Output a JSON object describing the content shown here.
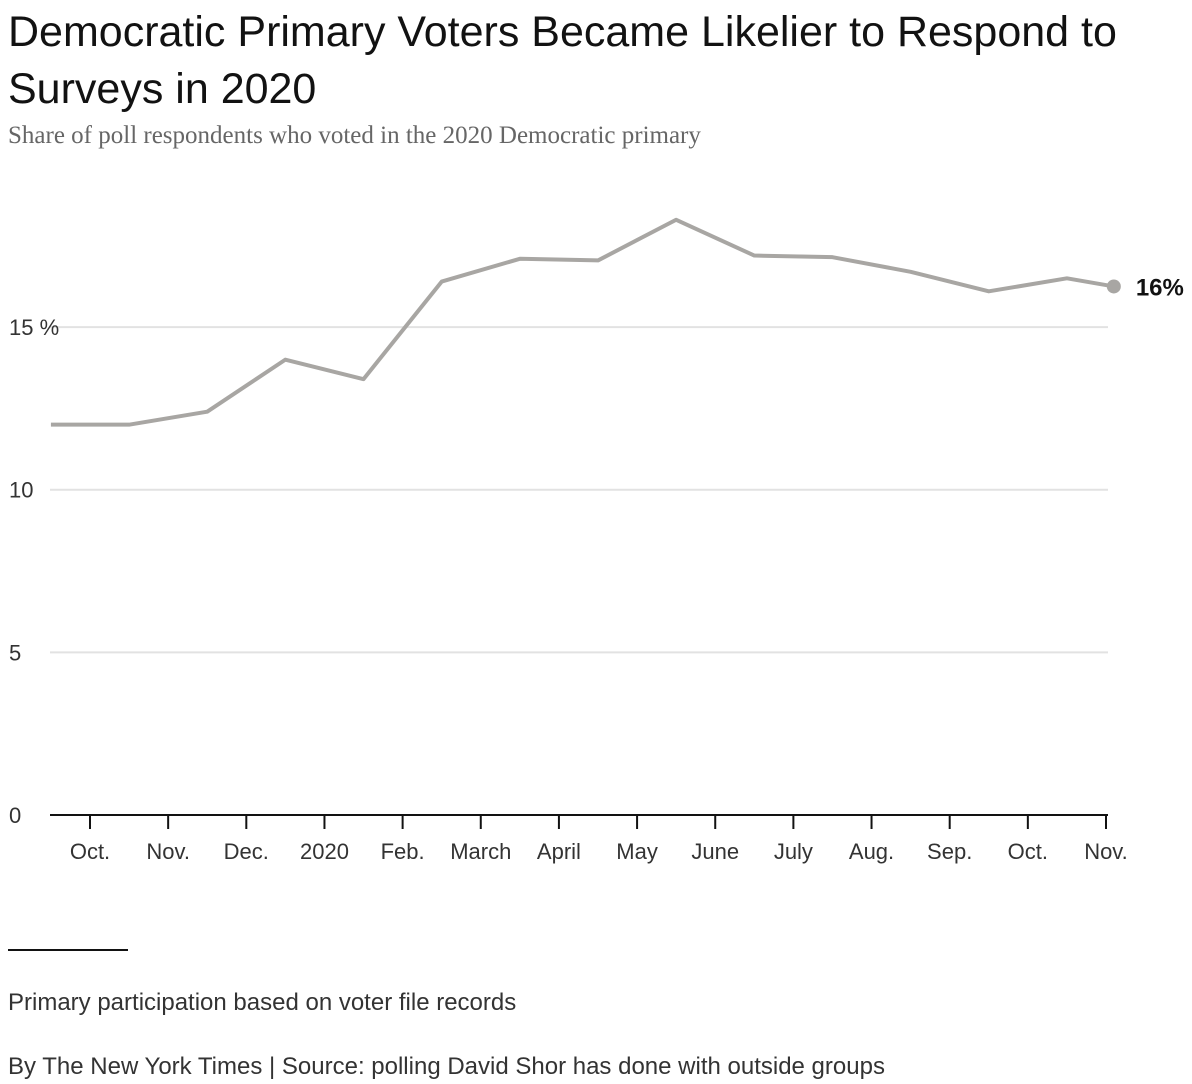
{
  "title": "Democratic Primary Voters Became Likelier to Respond to Surveys in 2020",
  "subtitle": "Share of poll respondents who voted in the 2020 Democratic primary",
  "note": "Primary participation based on voter file records",
  "credit": "By The New York Times | Source: polling David Shor has done with outside groups",
  "colors": {
    "line": "#a8a6a3",
    "grid": "#e2e2e2",
    "axis": "#121212",
    "text": "#333333"
  },
  "chart_data": {
    "type": "line",
    "x_unit": "month index (0 = Oct. 2019)",
    "x": [
      -0.5,
      0.5,
      1.5,
      2.5,
      3.5,
      4.5,
      5.5,
      6.5,
      7.5,
      8.5,
      9.5,
      10.5,
      11.5,
      12.5,
      13.1
    ],
    "y": [
      12.0,
      12.0,
      12.4,
      14.0,
      13.4,
      16.4,
      17.1,
      17.05,
      18.3,
      17.2,
      17.15,
      16.7,
      16.1,
      16.5,
      16.25
    ],
    "xlim": [
      -0.5,
      13.2
    ],
    "ylim": [
      0,
      19
    ],
    "yticks": [
      0,
      5,
      10,
      15
    ],
    "ytick_labels": [
      "0",
      "5",
      "10",
      "15 %"
    ],
    "xtick_positions": [
      0,
      1,
      2,
      3,
      4,
      5,
      6,
      7,
      8,
      9,
      10,
      11,
      12,
      13
    ],
    "xtick_labels": [
      "Oct.",
      "Nov.",
      "Dec.",
      "2020",
      "Feb.",
      "March",
      "April",
      "May",
      "June",
      "July",
      "Aug.",
      "Sep.",
      "Oct.",
      "Nov."
    ],
    "end_label": "16%",
    "grid": true
  }
}
